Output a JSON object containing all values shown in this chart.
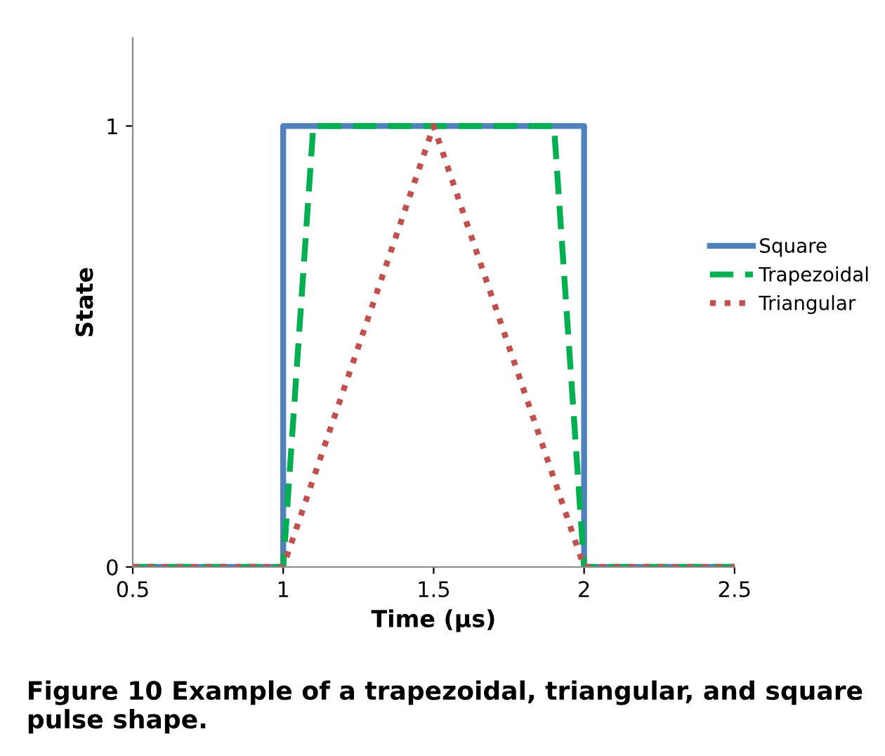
{
  "chart_data": {
    "type": "line",
    "xlabel": "Time (µs)",
    "ylabel": "State",
    "xlim": [
      0.5,
      2.5
    ],
    "xticks": [
      0.5,
      1,
      1.5,
      2,
      2.5
    ],
    "ylim": [
      0,
      1.2
    ],
    "yticks": [
      0,
      1
    ],
    "grid": false,
    "legend": "right",
    "series": [
      {
        "name": "Square",
        "color": "#4f81bd",
        "line_style": "solid",
        "x": [
          0.5,
          1,
          1,
          2,
          2,
          2.5
        ],
        "values": [
          0,
          0,
          1,
          1,
          0,
          0
        ]
      },
      {
        "name": "Trapezoidal",
        "color": "#00b050",
        "line_style": "dashed",
        "x": [
          0.5,
          1,
          1.1,
          1.9,
          2,
          2.5
        ],
        "values": [
          0,
          0,
          1,
          1,
          0,
          0
        ]
      },
      {
        "name": "Triangular",
        "color": "#c0504d",
        "line_style": "dotted",
        "x": [
          0.5,
          1,
          1.5,
          2,
          2.5
        ],
        "values": [
          0,
          0,
          1,
          0,
          0
        ]
      }
    ],
    "annotations": [
      "Figure 10 Example of a trapezoidal, triangular, and square pulse shape."
    ]
  }
}
